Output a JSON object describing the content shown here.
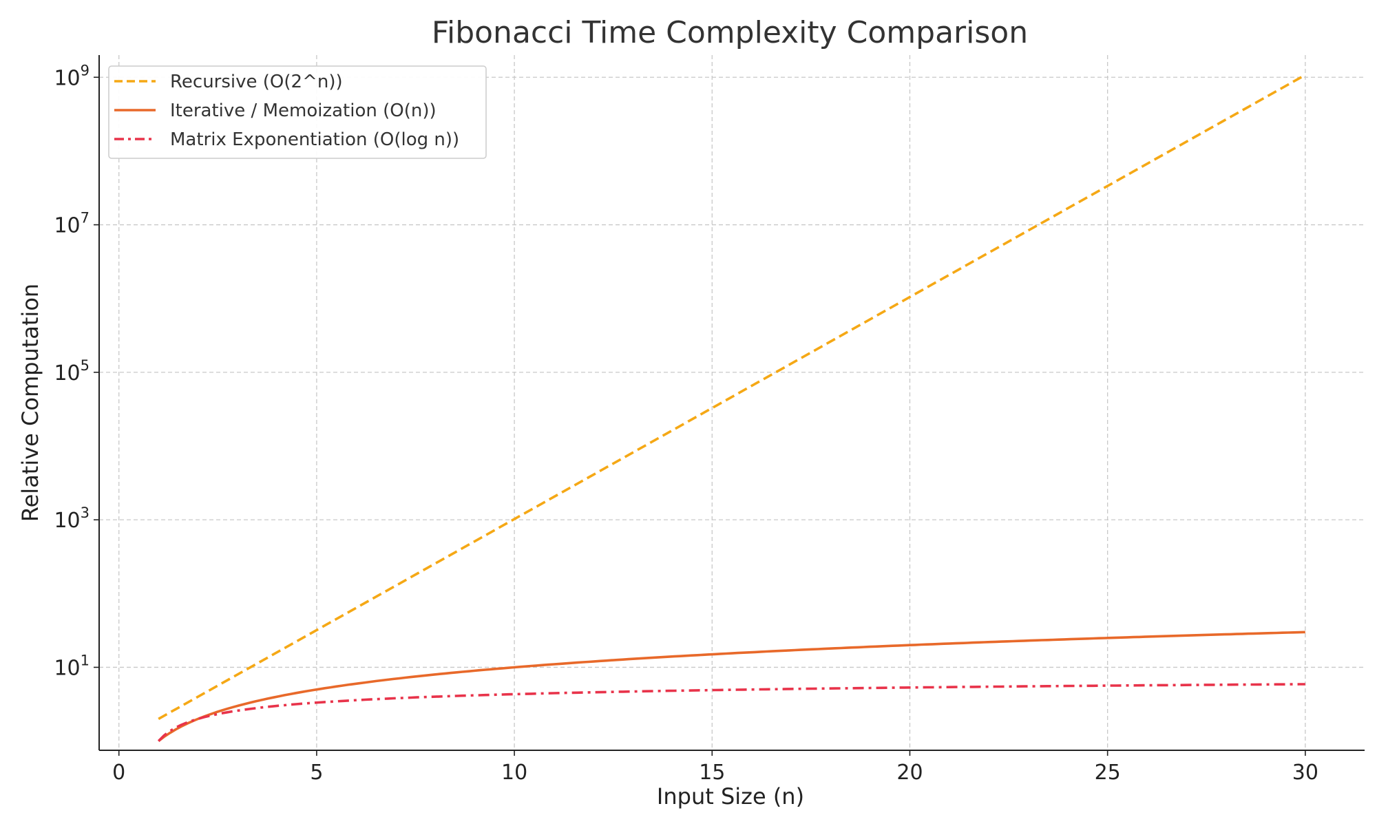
{
  "chart_data": {
    "type": "line",
    "title": "Fibonacci Time Complexity Comparison",
    "xlabel": "Input Size (n)",
    "ylabel": "Relative Computation",
    "xlim": [
      -0.5,
      31.5
    ],
    "ylim": [
      0.75,
      2000000000
    ],
    "yscale": "log",
    "grid": true,
    "legend_position": "top-left",
    "x_ticks": [
      {
        "value": 0,
        "label": "0"
      },
      {
        "value": 5,
        "label": "5"
      },
      {
        "value": 10,
        "label": "10"
      },
      {
        "value": 15,
        "label": "15"
      },
      {
        "value": 20,
        "label": "20"
      },
      {
        "value": 25,
        "label": "25"
      },
      {
        "value": 30,
        "label": "30"
      }
    ],
    "y_ticks": [
      {
        "value": 10,
        "base": "10",
        "exp": "1"
      },
      {
        "value": 1000,
        "base": "10",
        "exp": "3"
      },
      {
        "value": 100000,
        "base": "10",
        "exp": "5"
      },
      {
        "value": 10000000,
        "base": "10",
        "exp": "7"
      },
      {
        "value": 1000000000,
        "base": "10",
        "exp": "9"
      }
    ],
    "x": [
      1,
      2,
      3,
      4,
      5,
      6,
      7,
      8,
      9,
      10,
      11,
      12,
      13,
      14,
      15,
      16,
      17,
      18,
      19,
      20,
      21,
      22,
      23,
      24,
      25,
      26,
      27,
      28,
      29,
      30
    ],
    "series": [
      {
        "name": "Recursive (O(2^n))",
        "color": "#f5a815",
        "dash": "dashed",
        "values": [
          2,
          4,
          8,
          16,
          32,
          64,
          128,
          256,
          512,
          1024,
          2048,
          4096,
          8192,
          16384,
          32768,
          65536,
          131072,
          262144,
          524288,
          1048576,
          2097152,
          4194304,
          8388608,
          16777216,
          33554432,
          67108864,
          134217728,
          268435456,
          536870912,
          1073741824
        ]
      },
      {
        "name": "Iterative / Memoization (O(n))",
        "color": "#e8692a",
        "dash": "solid",
        "values": [
          1,
          2,
          3,
          4,
          5,
          6,
          7,
          8,
          9,
          10,
          11,
          12,
          13,
          14,
          15,
          16,
          17,
          18,
          19,
          20,
          21,
          22,
          23,
          24,
          25,
          26,
          27,
          28,
          29,
          30
        ]
      },
      {
        "name": "Matrix Exponentiation (O(log n))",
        "color": "#e8334a",
        "dash": "dashdot",
        "values": [
          1,
          1.69,
          2.1,
          2.39,
          2.61,
          2.79,
          2.95,
          3.08,
          3.2,
          3.3,
          3.4,
          3.48,
          3.56,
          3.64,
          3.71,
          3.77,
          3.83,
          3.89,
          3.94,
          4.0,
          4.04,
          4.09,
          4.14,
          4.18,
          4.22,
          4.26,
          4.3,
          4.33,
          4.37,
          4.4
        ]
      }
    ]
  }
}
